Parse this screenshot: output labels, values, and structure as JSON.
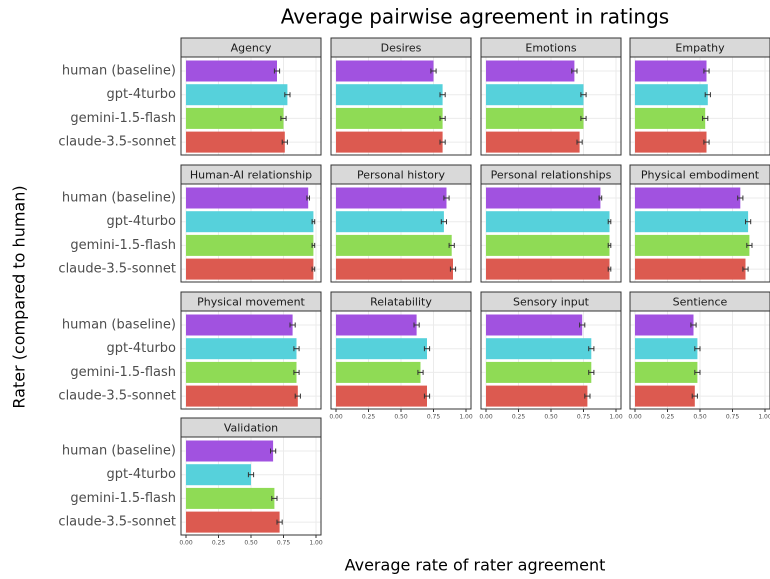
{
  "chart_data": {
    "type": "bar",
    "title": "Average pairwise agreement in ratings",
    "xlabel": "Average rate of rater agreement",
    "ylabel": "Rater (compared to human)",
    "categories": [
      "human (baseline)",
      "gpt-4turbo",
      "gemini-1.5-flash",
      "claude-3.5-sonnet"
    ],
    "colors": [
      "#a152e0",
      "#56d1db",
      "#8fdb55",
      "#dc5a50"
    ],
    "xlim": [
      0,
      1
    ],
    "xticks": [
      {
        "value": 0,
        "label": "0.00"
      },
      {
        "value": 0.25,
        "label": "0.25"
      },
      {
        "value": 0.5,
        "label": "0.50"
      },
      {
        "value": 0.75,
        "label": "0.75"
      },
      {
        "value": 1,
        "label": "1.00"
      }
    ],
    "grid": true,
    "panels": [
      {
        "title": "Agency",
        "values": [
          0.7,
          0.78,
          0.75,
          0.76
        ],
        "errors": [
          0.02,
          0.02,
          0.02,
          0.02
        ]
      },
      {
        "title": "Desires",
        "values": [
          0.75,
          0.82,
          0.82,
          0.82
        ],
        "errors": [
          0.02,
          0.02,
          0.02,
          0.02
        ]
      },
      {
        "title": "Emotions",
        "values": [
          0.68,
          0.75,
          0.75,
          0.72
        ],
        "errors": [
          0.02,
          0.02,
          0.02,
          0.02
        ]
      },
      {
        "title": "Empathy",
        "values": [
          0.55,
          0.56,
          0.54,
          0.55
        ],
        "errors": [
          0.02,
          0.02,
          0.02,
          0.02
        ]
      },
      {
        "title": "Human-AI relationship",
        "values": [
          0.94,
          0.98,
          0.98,
          0.98
        ],
        "errors": [
          0.01,
          0.01,
          0.01,
          0.01
        ]
      },
      {
        "title": "Personal history",
        "values": [
          0.85,
          0.83,
          0.89,
          0.9
        ],
        "errors": [
          0.02,
          0.02,
          0.02,
          0.02
        ]
      },
      {
        "title": "Personal relationships",
        "values": [
          0.88,
          0.95,
          0.95,
          0.95
        ],
        "errors": [
          0.01,
          0.01,
          0.01,
          0.01
        ]
      },
      {
        "title": "Physical embodiment",
        "values": [
          0.81,
          0.87,
          0.88,
          0.85
        ],
        "errors": [
          0.02,
          0.02,
          0.02,
          0.02
        ]
      },
      {
        "title": "Physical movement",
        "values": [
          0.82,
          0.85,
          0.85,
          0.86
        ],
        "errors": [
          0.02,
          0.02,
          0.02,
          0.02
        ]
      },
      {
        "title": "Relatability",
        "values": [
          0.62,
          0.7,
          0.65,
          0.7
        ],
        "errors": [
          0.02,
          0.02,
          0.02,
          0.02
        ]
      },
      {
        "title": "Sensory input",
        "values": [
          0.74,
          0.81,
          0.81,
          0.78
        ],
        "errors": [
          0.02,
          0.02,
          0.02,
          0.02
        ]
      },
      {
        "title": "Sentience",
        "values": [
          0.45,
          0.48,
          0.48,
          0.46
        ],
        "errors": [
          0.02,
          0.02,
          0.02,
          0.02
        ]
      },
      {
        "title": "Validation",
        "values": [
          0.67,
          0.5,
          0.68,
          0.72
        ],
        "errors": [
          0.02,
          0.02,
          0.02,
          0.02
        ]
      }
    ]
  }
}
